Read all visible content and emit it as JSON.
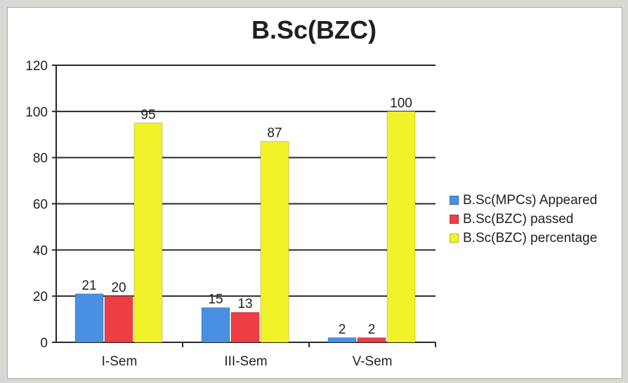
{
  "chart_data": {
    "type": "bar",
    "title": "B.Sc(BZC)",
    "categories": [
      "I-Sem",
      "III-Sem",
      "V-Sem"
    ],
    "ylim": [
      0,
      120
    ],
    "yticks": [
      0,
      20,
      40,
      60,
      80,
      100,
      120
    ],
    "grid": true,
    "legend_position": "right",
    "series": [
      {
        "name": "B.Sc(MPCs) Appeared",
        "values": [
          21,
          15,
          2
        ],
        "labels": [
          "21",
          "15",
          "2"
        ],
        "color": "#4a90e2"
      },
      {
        "name": "B.Sc(BZC) passed",
        "values": [
          20,
          13,
          2
        ],
        "labels": [
          "20",
          "13",
          "2"
        ],
        "color": "#ee3e45"
      },
      {
        "name": "B.Sc(BZC) percentage",
        "values": [
          95,
          87,
          100
        ],
        "labels": [
          "95",
          "87",
          "100"
        ],
        "color": "#f2f22a"
      }
    ]
  }
}
